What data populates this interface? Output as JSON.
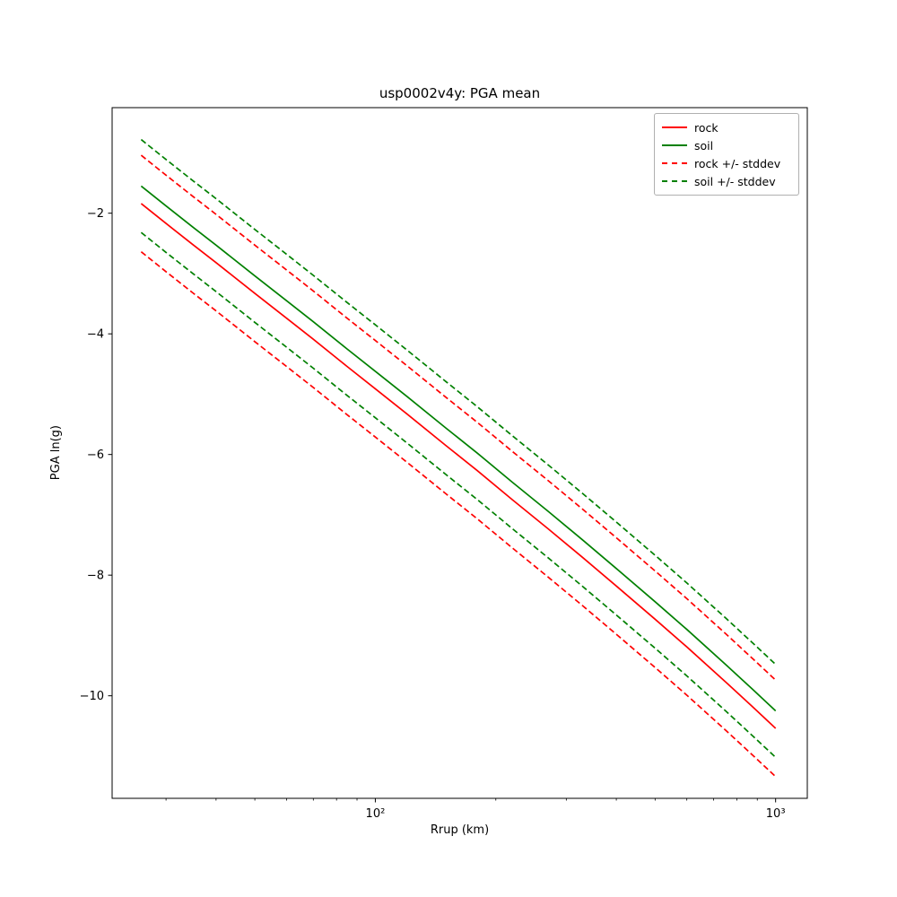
{
  "figure": {
    "background": "#ffffff"
  },
  "chart_data": {
    "type": "line",
    "title": "usp0002v4y: PGA mean",
    "xlabel": "Rrup (km)",
    "ylabel": "PGA ln(g)",
    "x_scale": "log",
    "y_scale": "linear",
    "xlim": [
      22,
      1200
    ],
    "ylim": [
      -11.7,
      -0.25
    ],
    "grid": false,
    "legend_position": "upper right",
    "x_ticks": [
      {
        "value": 100,
        "label": "10²"
      },
      {
        "value": 1000,
        "label": "10³"
      }
    ],
    "x_minor_ticks": [
      30,
      40,
      50,
      60,
      70,
      80,
      90,
      200,
      300,
      400,
      500,
      600,
      700,
      800,
      900
    ],
    "y_ticks": [
      {
        "value": -2,
        "label": "−2"
      },
      {
        "value": -4,
        "label": "−4"
      },
      {
        "value": -6,
        "label": "−6"
      },
      {
        "value": -8,
        "label": "−8"
      },
      {
        "value": -10,
        "label": "−10"
      }
    ],
    "x": [
      26,
      30,
      35,
      40,
      50,
      60,
      70,
      85,
      100,
      120,
      150,
      180,
      220,
      270,
      330,
      400,
      500,
      600,
      750,
      875,
      1000
    ],
    "series": [
      {
        "name": "rock",
        "color": "#ff0000",
        "dash": "solid",
        "values": [
          -1.84,
          -2.17,
          -2.52,
          -2.82,
          -3.33,
          -3.74,
          -4.09,
          -4.54,
          -4.91,
          -5.33,
          -5.85,
          -6.27,
          -6.75,
          -7.23,
          -7.71,
          -8.18,
          -8.73,
          -9.19,
          -9.77,
          -10.18,
          -10.54
        ]
      },
      {
        "name": "soil",
        "color": "#008000",
        "dash": "solid",
        "values": [
          -1.55,
          -1.88,
          -2.23,
          -2.53,
          -3.04,
          -3.45,
          -3.8,
          -4.25,
          -4.62,
          -5.04,
          -5.56,
          -5.98,
          -6.46,
          -6.94,
          -7.42,
          -7.89,
          -8.44,
          -8.9,
          -9.48,
          -9.89,
          -10.25
        ]
      },
      {
        "name": "rock +/- stddev",
        "color": "#ff0000",
        "dash": "dashed",
        "values_upper": [
          -1.04,
          -1.37,
          -1.72,
          -2.02,
          -2.53,
          -2.94,
          -3.29,
          -3.74,
          -4.11,
          -4.53,
          -5.05,
          -5.47,
          -5.95,
          -6.43,
          -6.91,
          -7.38,
          -7.93,
          -8.39,
          -8.97,
          -9.38,
          -9.74
        ],
        "values_lower": [
          -2.64,
          -2.97,
          -3.32,
          -3.62,
          -4.13,
          -4.54,
          -4.89,
          -5.34,
          -5.71,
          -6.13,
          -6.65,
          -7.07,
          -7.55,
          -8.03,
          -8.51,
          -8.98,
          -9.53,
          -9.99,
          -10.57,
          -10.98,
          -11.34
        ]
      },
      {
        "name": "soil +/- stddev",
        "color": "#008000",
        "dash": "dashed",
        "values_upper": [
          -0.78,
          -1.11,
          -1.46,
          -1.76,
          -2.27,
          -2.68,
          -3.03,
          -3.48,
          -3.85,
          -4.27,
          -4.79,
          -5.21,
          -5.69,
          -6.17,
          -6.65,
          -7.12,
          -7.67,
          -8.13,
          -8.71,
          -9.12,
          -9.48
        ],
        "values_lower": [
          -2.32,
          -2.65,
          -3.0,
          -3.3,
          -3.81,
          -4.22,
          -4.57,
          -5.02,
          -5.39,
          -5.81,
          -6.33,
          -6.75,
          -7.23,
          -7.71,
          -8.19,
          -8.66,
          -9.21,
          -9.67,
          -10.25,
          -10.66,
          -11.02
        ]
      }
    ]
  }
}
